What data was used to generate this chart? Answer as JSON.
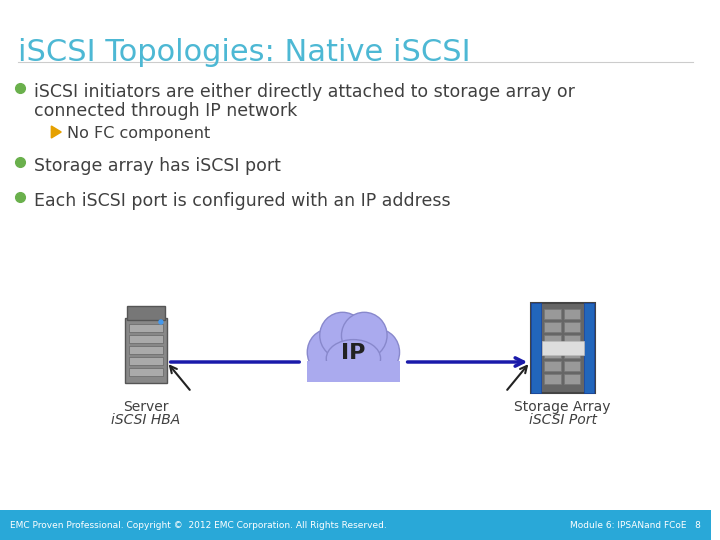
{
  "title": "iSCSI Topologies: Native iSCSI",
  "title_color": "#4db8d4",
  "title_fontsize": 22,
  "bg_color": "#ffffff",
  "bullet_color": "#6ab04c",
  "sub_bullet_color": "#e5a000",
  "text_color": "#404040",
  "footer_bar_color": "#29a8d8",
  "footer_text_left": "EMC Proven Professional. Copyright ©  2012 EMC Corporation. All Rights Reserved.",
  "footer_text_right": "Module 6: IPSANand FCoE   8",
  "diagram_line_color": "#1a1aaa",
  "server_label": "Server",
  "server_sub": "iSCSI HBA",
  "storage_label": "Storage Array",
  "storage_sub": "iSCSI Port",
  "ip_label": "IP",
  "cloud_color": "#aaaaee",
  "cloud_edge": "#8888cc"
}
